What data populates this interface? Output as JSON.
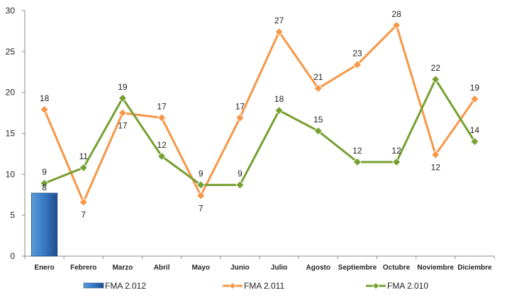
{
  "chart_data": {
    "type": "line",
    "categories": [
      "Enero",
      "Febrero",
      "Marzo",
      "Abril",
      "Mayo",
      "Junio",
      "Julio",
      "Agosto",
      "Septiembre",
      "Octubre",
      "Noviembre",
      "Diciembre"
    ],
    "ylim": [
      0,
      30
    ],
    "yticks": [
      0,
      5,
      10,
      15,
      20,
      25,
      30
    ],
    "grid": false,
    "legend_position": "bottom",
    "series": [
      {
        "name": "FMA 2.012",
        "kind": "bar",
        "color": "#2E6DB4",
        "values": [
          7.7,
          null,
          null,
          null,
          null,
          null,
          null,
          null,
          null,
          null,
          null,
          null
        ],
        "labels": [
          "8",
          null,
          null,
          null,
          null,
          null,
          null,
          null,
          null,
          null,
          null,
          null
        ]
      },
      {
        "name": "FMA 2.011",
        "kind": "line",
        "color": "#F79646",
        "values": [
          17.9,
          6.6,
          17.5,
          16.9,
          7.4,
          16.9,
          27.4,
          20.5,
          23.4,
          28.2,
          12.4,
          19.2
        ],
        "labels": [
          "18",
          "7",
          "17",
          "17",
          "7",
          "17",
          "27",
          "21",
          "23",
          "28",
          "12",
          "19"
        ],
        "label_pos": [
          "above",
          "below",
          "below",
          "above",
          "below",
          "above",
          "above",
          "above",
          "above",
          "above",
          "below",
          "above"
        ]
      },
      {
        "name": "FMA 2.010",
        "kind": "line",
        "color": "#77A033",
        "values": [
          8.9,
          10.8,
          19.3,
          12.2,
          8.7,
          8.7,
          17.8,
          15.3,
          11.5,
          11.5,
          21.6,
          14.0
        ],
        "labels": [
          "9",
          "11",
          "19",
          "12",
          "9",
          "9",
          "18",
          "15",
          "12",
          "12",
          "22",
          "14"
        ],
        "label_pos": [
          "above",
          "above",
          "above",
          "above",
          "above",
          "above",
          "above",
          "above",
          "above",
          "above",
          "above",
          "above"
        ]
      }
    ]
  }
}
